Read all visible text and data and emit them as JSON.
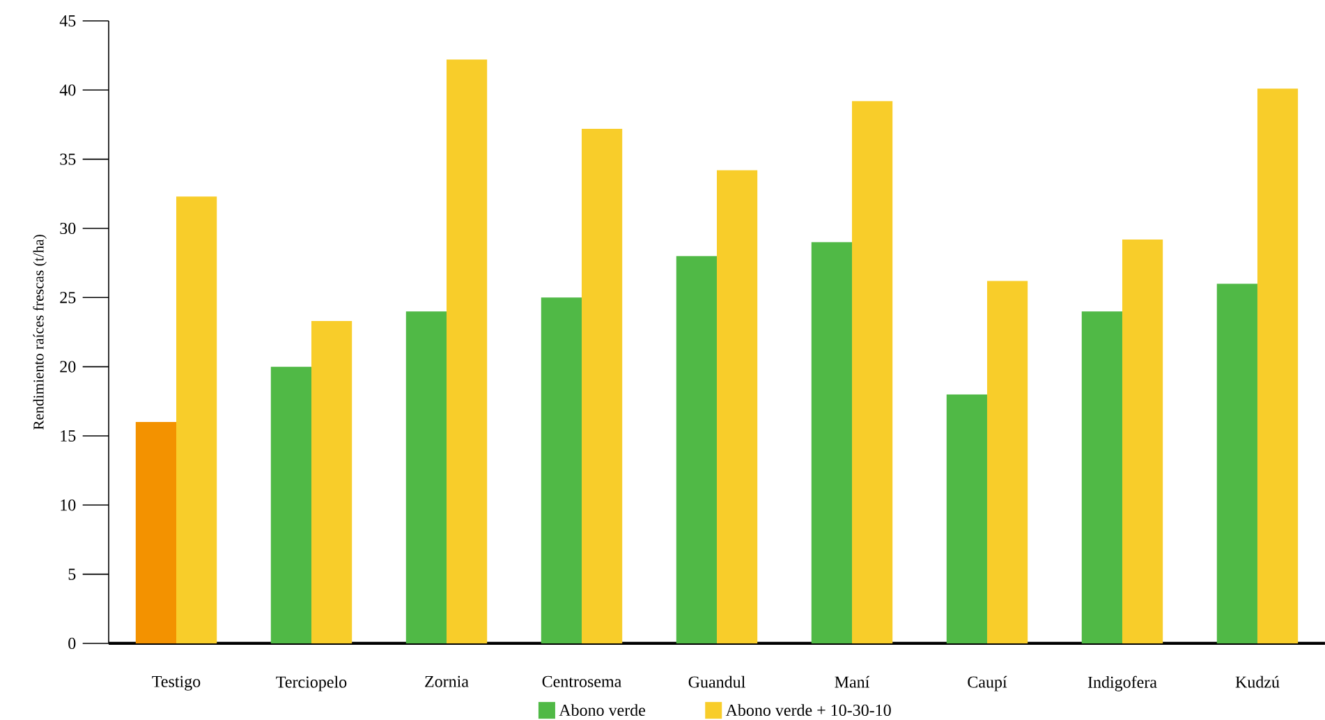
{
  "chart_data": {
    "type": "bar",
    "ylabel": "Rendimiento raíces frescas (t/ha)",
    "categories": [
      "Testigo",
      "Terciopelo",
      "Zornia",
      "Centrosema",
      "Guandul",
      "Maní",
      "Caupí",
      "Indigofera",
      "Kudzú"
    ],
    "series": [
      {
        "name": "Abono verde",
        "color": "#50b946",
        "colors": [
          "#f39200",
          "#50b946",
          "#50b946",
          "#50b946",
          "#50b946",
          "#50b946",
          "#50b946",
          "#50b946",
          "#50b946"
        ],
        "values": [
          16,
          20,
          24,
          25,
          28,
          29,
          18,
          24,
          26
        ]
      },
      {
        "name": "Abono verde + 10-30-10",
        "color": "#f8cd2a",
        "values": [
          32.3,
          23.3,
          42.2,
          37.2,
          34.2,
          39.2,
          26.2,
          29.2,
          40.1
        ]
      }
    ],
    "ylim": [
      0,
      45
    ],
    "yticks": [
      0,
      5,
      10,
      15,
      20,
      25,
      30,
      35,
      40,
      45
    ],
    "grid": false,
    "legend": "bottom"
  }
}
